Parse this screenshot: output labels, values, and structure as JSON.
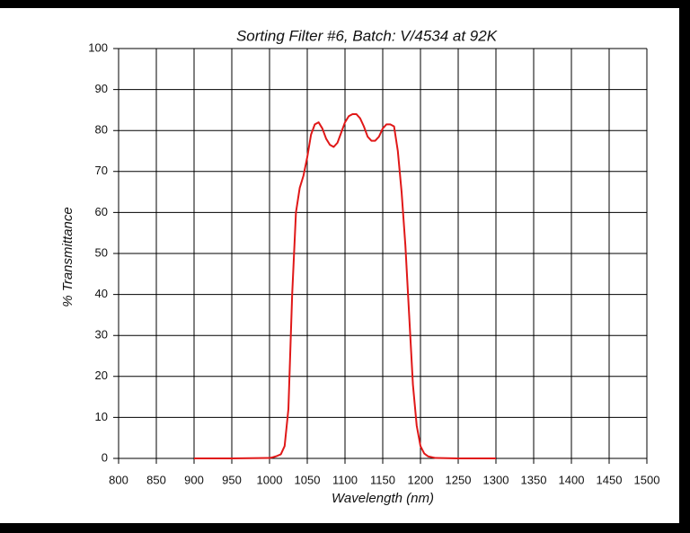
{
  "chart_data": {
    "type": "line",
    "title": "Sorting Filter #6, Batch: V/4534  at 92K",
    "x_label": "Wavelength (nm)",
    "y_label": "% Transmittance",
    "x": [
      900,
      950,
      1000,
      1005,
      1010,
      1015,
      1020,
      1025,
      1030,
      1035,
      1040,
      1045,
      1050,
      1055,
      1060,
      1065,
      1070,
      1075,
      1080,
      1085,
      1090,
      1095,
      1100,
      1105,
      1110,
      1115,
      1120,
      1125,
      1130,
      1135,
      1140,
      1145,
      1150,
      1155,
      1160,
      1165,
      1170,
      1175,
      1180,
      1185,
      1190,
      1195,
      1200,
      1205,
      1210,
      1220,
      1250,
      1300
    ],
    "series": [
      {
        "name": "Transmittance",
        "color": "#e01818",
        "values": [
          0,
          0,
          0.1,
          0.3,
          0.6,
          1,
          3,
          12,
          40,
          60,
          66,
          69,
          73.5,
          79,
          81.5,
          82,
          80.5,
          78,
          76.5,
          76,
          77,
          79.5,
          82,
          83.5,
          84,
          84,
          83,
          81,
          78.5,
          77.5,
          77.5,
          78.5,
          80.5,
          81.5,
          81.5,
          81,
          75,
          65,
          52,
          35,
          18,
          8,
          3,
          1.2,
          0.5,
          0.1,
          0,
          0
        ]
      }
    ],
    "xlim": [
      800,
      1500
    ],
    "ylim": [
      0,
      100
    ],
    "xticks": [
      800,
      850,
      900,
      950,
      1000,
      1050,
      1100,
      1150,
      1200,
      1250,
      1300,
      1350,
      1400,
      1450,
      1500
    ],
    "yticks": [
      0,
      10,
      20,
      30,
      40,
      50,
      60,
      70,
      80,
      90,
      100
    ],
    "grid": true
  }
}
